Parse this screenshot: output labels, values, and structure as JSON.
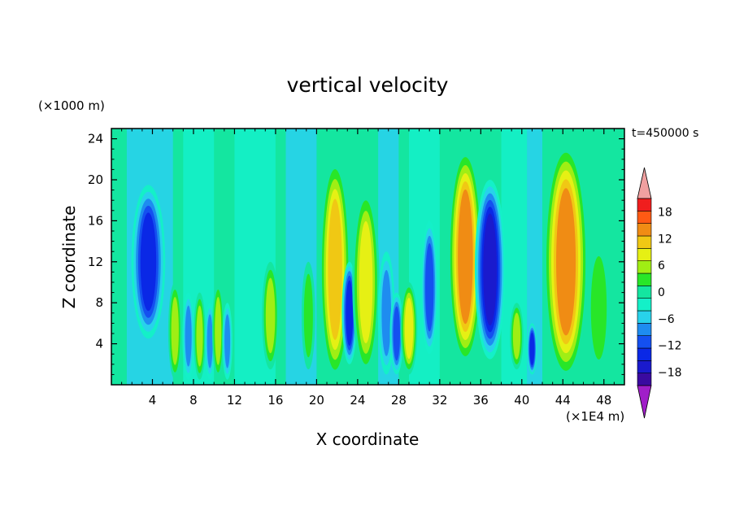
{
  "chart_data": {
    "type": "heatmap",
    "title": "vertical velocity",
    "xlabel": "X coordinate",
    "ylabel": "Z coordinate",
    "x_unit": "(×1E4 m)",
    "y_unit": "(×1000 m)",
    "time_label": "t=450000 s",
    "xlim": [
      0,
      50
    ],
    "ylim": [
      0,
      25
    ],
    "x_ticks": [
      4,
      8,
      12,
      16,
      20,
      24,
      28,
      32,
      36,
      40,
      44,
      48
    ],
    "y_ticks": [
      4,
      8,
      12,
      16,
      20,
      24
    ],
    "x_tick_labels": [
      "4",
      "8",
      "12",
      "16",
      "20",
      "24",
      "28",
      "32",
      "36",
      "40",
      "44",
      "48"
    ],
    "y_tick_labels": [
      "4",
      "8",
      "12",
      "16",
      "20",
      "24"
    ],
    "colorbar": {
      "levels": [
        -21,
        -18,
        -15,
        -12,
        -9,
        -6,
        -3,
        0,
        3,
        6,
        9,
        12,
        15,
        18,
        21
      ],
      "tick_values": [
        -18,
        -12,
        -6,
        0,
        6,
        12,
        18
      ],
      "tick_labels": [
        "−18",
        "−12",
        "−6",
        "0",
        "6",
        "12",
        "18"
      ],
      "colors": [
        "#3a0aa0",
        "#1a1acd",
        "#0a28e6",
        "#1450f0",
        "#1e8cf0",
        "#28d2eb",
        "#14f0c8",
        "#14e6a0",
        "#28e628",
        "#a0ee14",
        "#e6f014",
        "#f0c814",
        "#f08c14",
        "#ff5a14",
        "#f01e1e"
      ],
      "under_color": "#a01ec8",
      "over_color": "#f0a0a0"
    },
    "features": [
      {
        "x": 3.6,
        "top": 19.5,
        "bottom": 4.5,
        "w": 1.0,
        "v": -14
      },
      {
        "x": 6.2,
        "top": 10,
        "bottom": 0.5,
        "w": 0.4,
        "v": 8
      },
      {
        "x": 7.5,
        "top": 9,
        "bottom": 0.5,
        "w": 0.35,
        "v": -10
      },
      {
        "x": 8.6,
        "top": 9,
        "bottom": 0.5,
        "w": 0.35,
        "v": 10
      },
      {
        "x": 9.6,
        "top": 8,
        "bottom": 0.5,
        "w": 0.3,
        "v": -10
      },
      {
        "x": 10.4,
        "top": 10,
        "bottom": 0.5,
        "w": 0.35,
        "v": 8
      },
      {
        "x": 11.3,
        "top": 8,
        "bottom": 0.5,
        "w": 0.3,
        "v": -9
      },
      {
        "x": 15.5,
        "top": 12,
        "bottom": 1.5,
        "w": 0.5,
        "v": 8
      },
      {
        "x": 19.2,
        "top": 12,
        "bottom": 1.5,
        "w": 0.4,
        "v": 7
      },
      {
        "x": 21.8,
        "top": 22,
        "bottom": 0.5,
        "w": 0.9,
        "v": 15
      },
      {
        "x": 23.2,
        "top": 12,
        "bottom": 2,
        "w": 0.45,
        "v": -15
      },
      {
        "x": 24.8,
        "top": 19,
        "bottom": 1,
        "w": 0.8,
        "v": 12
      },
      {
        "x": 26.8,
        "top": 13,
        "bottom": 1,
        "w": 0.5,
        "v": -8
      },
      {
        "x": 27.8,
        "top": 9,
        "bottom": 1,
        "w": 0.4,
        "v": -12
      },
      {
        "x": 29.0,
        "top": 10,
        "bottom": 1,
        "w": 0.5,
        "v": 12
      },
      {
        "x": 31.0,
        "top": 16,
        "bottom": 3,
        "w": 0.5,
        "v": -12
      },
      {
        "x": 34.5,
        "top": 23,
        "bottom": 2,
        "w": 1.0,
        "v": 17
      },
      {
        "x": 36.9,
        "top": 20,
        "bottom": 2.5,
        "w": 0.9,
        "v": -18
      },
      {
        "x": 39.5,
        "top": 8,
        "bottom": 1.5,
        "w": 0.4,
        "v": 8
      },
      {
        "x": 41.0,
        "top": 6,
        "bottom": 1,
        "w": 0.3,
        "v": -14
      },
      {
        "x": 44.3,
        "top": 23.5,
        "bottom": 0.5,
        "w": 1.3,
        "v": 19
      },
      {
        "x": 47.5,
        "top": 14,
        "bottom": 1,
        "w": 0.7,
        "v": 7
      }
    ],
    "grid": false
  }
}
